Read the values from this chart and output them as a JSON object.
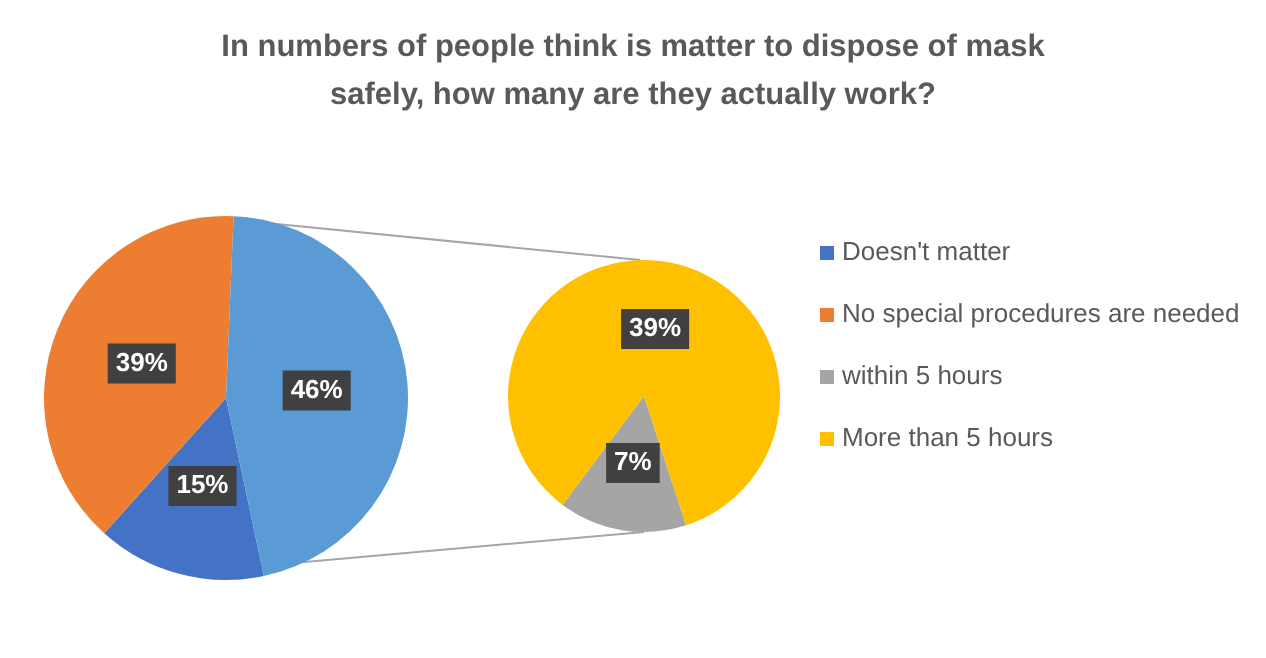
{
  "chart_data": [
    {
      "type": "pie",
      "title": "In numbers of people think is matter to dispose of mask safely, how many are they actually work?",
      "categories": [
        "Doesn't matter",
        "No special procedures are needed",
        null
      ],
      "values": [
        15,
        39,
        46
      ],
      "colors": [
        "#4472c4",
        "#ed7d31",
        "#5b9bd5"
      ],
      "value_labels": [
        "15%",
        "39%",
        "46%"
      ],
      "legend": "right"
    },
    {
      "type": "pie",
      "categories": [
        "within 5 hours",
        "More than 5 hours"
      ],
      "values": [
        7,
        39
      ],
      "colors": [
        "#a5a5a5",
        "#ffc000"
      ],
      "value_labels": [
        "7%",
        "39%"
      ],
      "legend": "right"
    }
  ]
}
